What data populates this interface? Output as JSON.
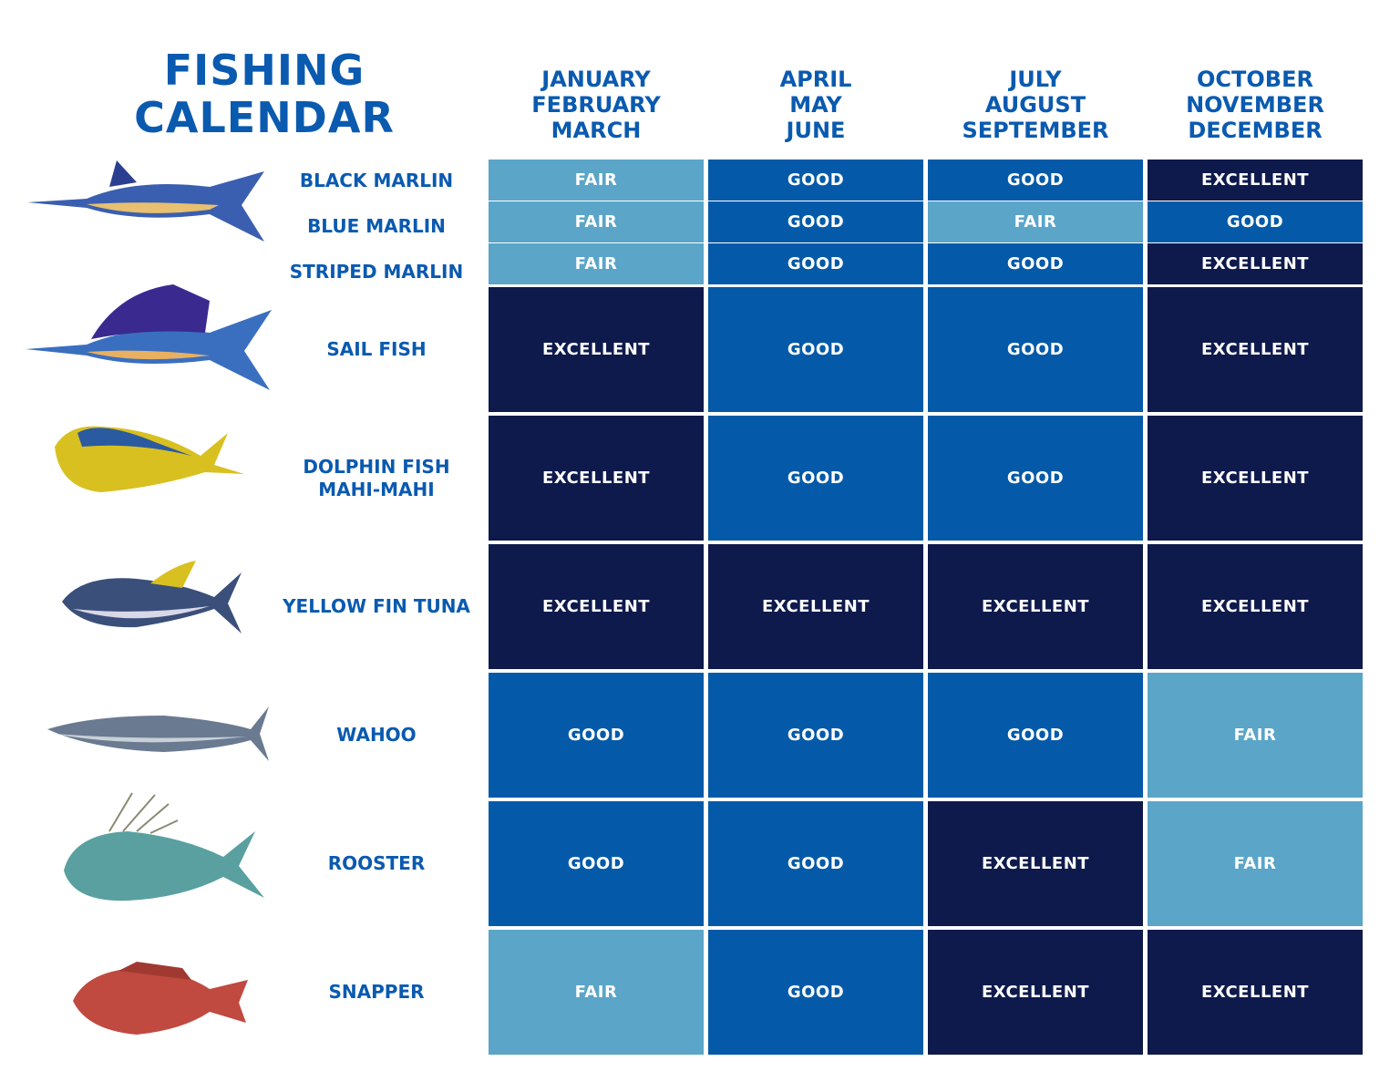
{
  "title": [
    "FISHING",
    "CALENDAR"
  ],
  "columns": [
    [
      "JANUARY",
      "FEBRUARY",
      "MARCH"
    ],
    [
      "APRIL",
      "MAY",
      "JUNE"
    ],
    [
      "JULY",
      "AUGUST",
      "SEPTEMBER"
    ],
    [
      "OCTOBER",
      "NOVEMBER",
      "DECEMBER"
    ]
  ],
  "rating_colors": {
    "FAIR": "#5aa5c8",
    "GOOD": "#045aa8",
    "EXCELLENT": "#0e1a4c"
  },
  "rows": [
    {
      "label": [
        "BLACK MARLIN"
      ],
      "cells": [
        "FAIR",
        "GOOD",
        "GOOD",
        "EXCELLENT"
      ]
    },
    {
      "label": [
        "BLUE MARLIN"
      ],
      "cells": [
        "FAIR",
        "GOOD",
        "FAIR",
        "GOOD"
      ]
    },
    {
      "label": [
        "STRIPED MARLIN"
      ],
      "cells": [
        "FAIR",
        "GOOD",
        "GOOD",
        "EXCELLENT"
      ]
    },
    {
      "label": [
        "SAIL FISH"
      ],
      "cells": [
        "EXCELLENT",
        "GOOD",
        "GOOD",
        "EXCELLENT"
      ]
    },
    {
      "label": [
        "DOLPHIN FISH",
        "MAHI-MAHI"
      ],
      "cells": [
        "EXCELLENT",
        "GOOD",
        "GOOD",
        "EXCELLENT"
      ]
    },
    {
      "label": [
        "YELLOW FIN TUNA"
      ],
      "cells": [
        "EXCELLENT",
        "EXCELLENT",
        "EXCELLENT",
        "EXCELLENT"
      ]
    },
    {
      "label": [
        "WAHOO"
      ],
      "cells": [
        "GOOD",
        "GOOD",
        "GOOD",
        "FAIR"
      ]
    },
    {
      "label": [
        "ROOSTER"
      ],
      "cells": [
        "GOOD",
        "GOOD",
        "EXCELLENT",
        "FAIR"
      ]
    },
    {
      "label": [
        "SNAPPER"
      ],
      "cells": [
        "FAIR",
        "GOOD",
        "EXCELLENT",
        "EXCELLENT"
      ]
    }
  ]
}
